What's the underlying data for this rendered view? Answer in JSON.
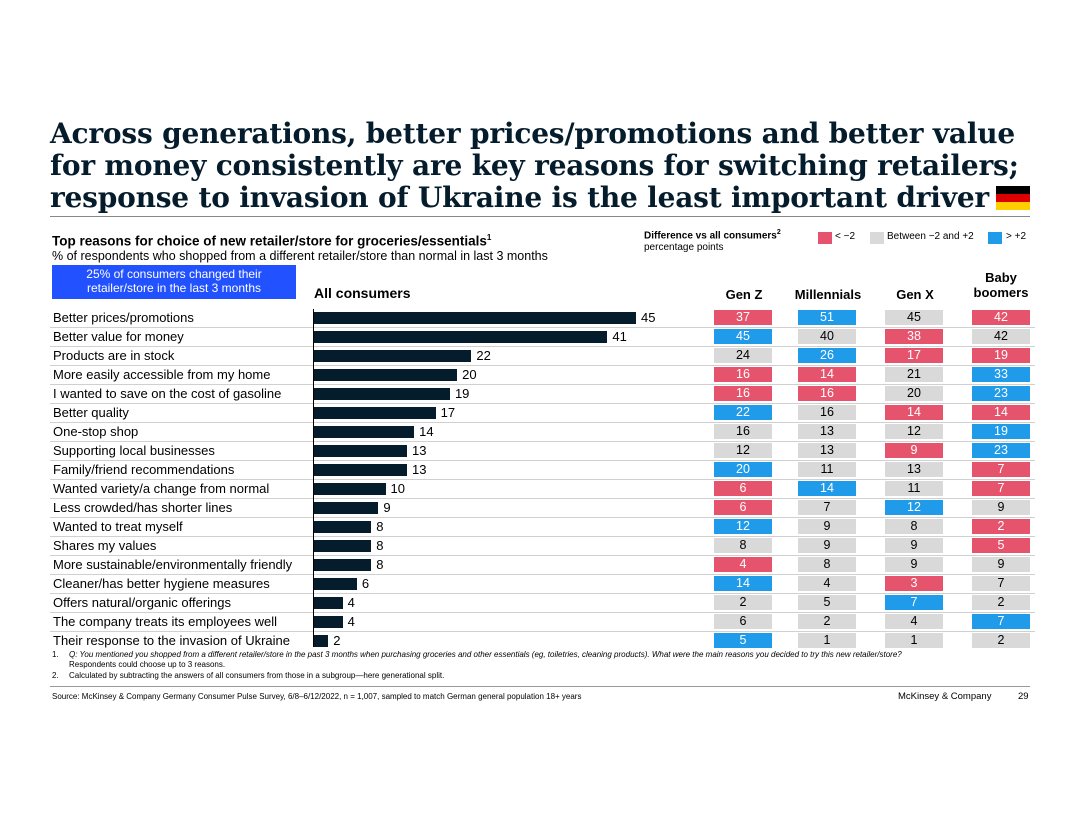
{
  "title": "Across generations, better prices/promotions and better value for money consistently are key reasons for switching retailers; response to invasion of Ukraine is the least important driver",
  "flag": {
    "name": "germany-flag",
    "colors": [
      "#000000",
      "#dd0000",
      "#ffce00"
    ]
  },
  "chart_title": "Top reasons for choice of new retailer/store for groceries/essentials",
  "chart_title_sup": "1",
  "chart_subtitle": "% of respondents who shopped from a different retailer/store than normal in last 3 months",
  "legend": {
    "title": "Difference vs all consumers",
    "title_sup": "2",
    "subtitle": "percentage points",
    "items": [
      {
        "label": "< −2",
        "color": "#e5546c"
      },
      {
        "label": "Between −2 and +2",
        "color": "#d9d9d9"
      },
      {
        "label": "> +2",
        "color": "#1f9be9"
      }
    ]
  },
  "callout": "25% of consumers changed their retailer/store in the last 3 months",
  "column_headers": {
    "all": "All consumers",
    "genz": "Gen Z",
    "millennials": "Millennials",
    "genx": "Gen X",
    "boomers": "Baby boomers"
  },
  "chart_data": {
    "type": "bar",
    "orientation": "horizontal",
    "title": "Top reasons for choice of new retailer/store for groceries/essentials",
    "categories": [
      "Better prices/promotions",
      "Better value for money",
      "Products are in stock",
      "More easily accessible from my home",
      "I wanted to save on the cost of gasoline",
      "Better quality",
      "One-stop shop",
      "Supporting local businesses",
      "Family/friend recommendations",
      "Wanted variety/a change from normal",
      "Less crowded/has shorter lines",
      "Wanted to treat myself",
      "Shares my values",
      "More sustainable/environmentally friendly",
      "Cleaner/has better hygiene measures",
      "Offers natural/organic offerings",
      "The company treats its employees well",
      "Their response to the invasion of Ukraine"
    ],
    "series": [
      {
        "name": "All consumers",
        "values": [
          45,
          41,
          22,
          20,
          19,
          17,
          14,
          13,
          13,
          10,
          9,
          8,
          8,
          8,
          6,
          4,
          4,
          2
        ]
      }
    ],
    "xlim": [
      0,
      45
    ],
    "table": [
      {
        "name": "Gen Z",
        "values": [
          37,
          45,
          24,
          16,
          16,
          22,
          16,
          12,
          20,
          6,
          6,
          12,
          8,
          4,
          14,
          2,
          6,
          5
        ],
        "status": [
          "r",
          "b",
          "g",
          "r",
          "r",
          "b",
          "g",
          "g",
          "b",
          "r",
          "r",
          "b",
          "g",
          "r",
          "b",
          "g",
          "g",
          "b"
        ]
      },
      {
        "name": "Millennials",
        "values": [
          51,
          40,
          26,
          14,
          16,
          16,
          13,
          13,
          11,
          14,
          7,
          9,
          9,
          8,
          4,
          5,
          2,
          1
        ],
        "status": [
          "b",
          "g",
          "b",
          "r",
          "r",
          "g",
          "g",
          "g",
          "g",
          "b",
          "g",
          "g",
          "g",
          "g",
          "g",
          "g",
          "g",
          "g"
        ]
      },
      {
        "name": "Gen X",
        "values": [
          45,
          38,
          17,
          21,
          20,
          14,
          12,
          9,
          13,
          11,
          12,
          8,
          9,
          9,
          3,
          7,
          4,
          1
        ],
        "status": [
          "g",
          "r",
          "r",
          "g",
          "g",
          "r",
          "g",
          "r",
          "g",
          "g",
          "b",
          "g",
          "g",
          "g",
          "r",
          "b",
          "g",
          "g"
        ]
      },
      {
        "name": "Baby boomers",
        "values": [
          42,
          42,
          19,
          33,
          23,
          14,
          19,
          23,
          7,
          7,
          9,
          2,
          5,
          9,
          7,
          2,
          7,
          2
        ],
        "status": [
          "r",
          "g",
          "r",
          "b",
          "b",
          "r",
          "b",
          "b",
          "r",
          "r",
          "g",
          "r",
          "r",
          "g",
          "g",
          "g",
          "b",
          "g"
        ]
      }
    ]
  },
  "footnotes": [
    {
      "num": "1.",
      "text": "Q: You mentioned you shopped from a different retailer/store in the past 3 months when purchasing groceries and other essentials (eg, toiletries, cleaning products). What were the main reasons you decided to try this new retailer/store?"
    },
    {
      "num": "",
      "text": "Respondents could choose up to 3 reasons."
    },
    {
      "num": "2.",
      "text": "Calculated by subtracting the answers of all consumers from those in a subgroup—here generational split."
    }
  ],
  "source": "Source: McKinsey & Company Germany Consumer Pulse Survey, 6/8–6/12/2022, n = 1,007, sampled to match German general population 18+ years",
  "brand": "McKinsey & Company",
  "page_number": "29",
  "colors": {
    "red": "#e5546c",
    "grey": "#d9d9d9",
    "blue": "#1f9be9",
    "bar": "#051c2c",
    "callout": "#2251ff"
  }
}
